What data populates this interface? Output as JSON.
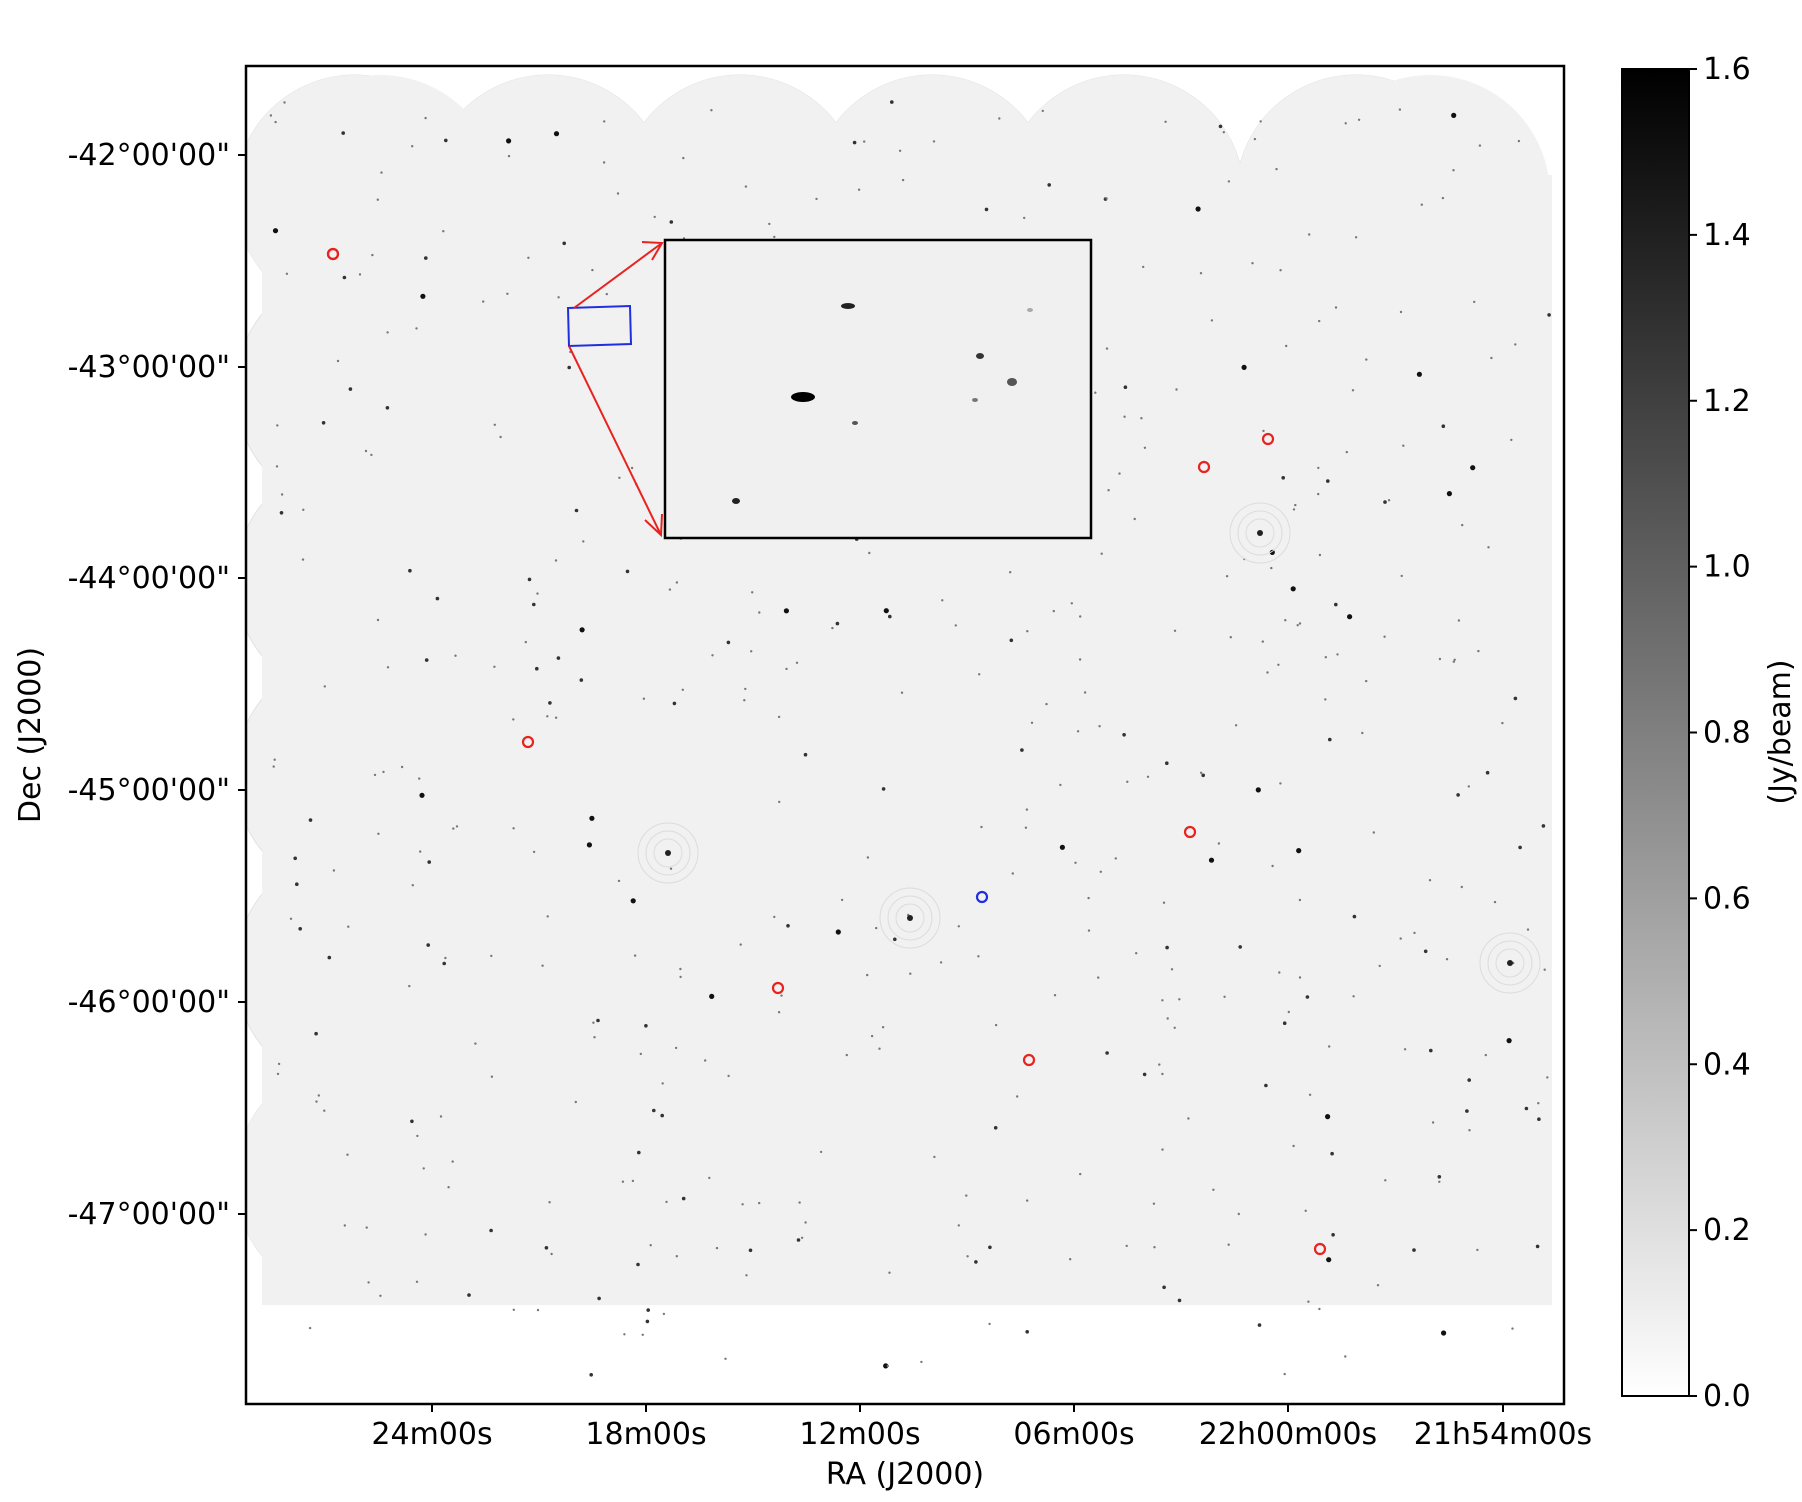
{
  "chart_data": {
    "type": "other",
    "xlabel": "RA (J2000)",
    "ylabel": "Dec (J2000)",
    "x_ticks": [
      "24m00s",
      "18m00s",
      "12m00s",
      "06m00s",
      "22h00m00s",
      "21h54m00s"
    ],
    "y_ticks": [
      "-42°00'00\"",
      "-43°00'00\"",
      "-44°00'00\"",
      "-45°00'00\"",
      "-46°00'00\"",
      "-47°00'00\""
    ],
    "colorbar": {
      "label": "(Jy/beam)",
      "ticks": [
        "0.0",
        "0.2",
        "0.4",
        "0.6",
        "0.8",
        "1.0",
        "1.2",
        "1.4",
        "1.6"
      ],
      "range": [
        0.0,
        1.6
      ],
      "colormap": "white-to-black"
    },
    "markers": {
      "red_circles": 9,
      "blue_circles": 1,
      "zoom_box": "blue rectangle with red arrows to black-framed inset"
    },
    "colors": {
      "red_marker": "#e8231f",
      "blue_marker": "#1f2fe0",
      "mosaic_background": "#f1f1f1"
    }
  }
}
